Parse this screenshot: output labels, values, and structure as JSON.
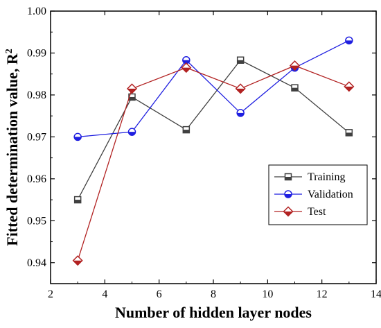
{
  "chart_data": {
    "type": "line",
    "xlabel": "Number of hidden layer nodes",
    "ylabel": "Fitted determination value, R",
    "ylabel_superscript": "2",
    "xlim": [
      2,
      14
    ],
    "ylim": [
      0.935,
      1.0
    ],
    "x_ticks": [
      2,
      4,
      6,
      8,
      10,
      12,
      14
    ],
    "y_ticks": [
      0.94,
      0.95,
      0.96,
      0.97,
      0.98,
      0.99,
      1.0
    ],
    "x_tick_labels": [
      "2",
      "4",
      "6",
      "8",
      "10",
      "12",
      "14"
    ],
    "y_tick_labels": [
      "0.94",
      "0.95",
      "0.96",
      "0.97",
      "0.98",
      "0.99",
      "1.00"
    ],
    "grid": false,
    "legend_position": "lower-right",
    "x": [
      3,
      5,
      7,
      9,
      11,
      13
    ],
    "series": [
      {
        "name": "Training",
        "values": [
          0.955,
          0.9795,
          0.9717,
          0.9883,
          0.9817,
          0.971
        ],
        "color": "#404040",
        "marker": "square"
      },
      {
        "name": "Validation",
        "values": [
          0.97,
          0.9712,
          0.9883,
          0.9757,
          0.9865,
          0.993
        ],
        "color": "#1f1fe0",
        "marker": "circle"
      },
      {
        "name": "Test",
        "values": [
          0.9405,
          0.9815,
          0.9865,
          0.9815,
          0.987,
          0.982
        ],
        "color": "#b22222",
        "marker": "diamond"
      }
    ]
  }
}
